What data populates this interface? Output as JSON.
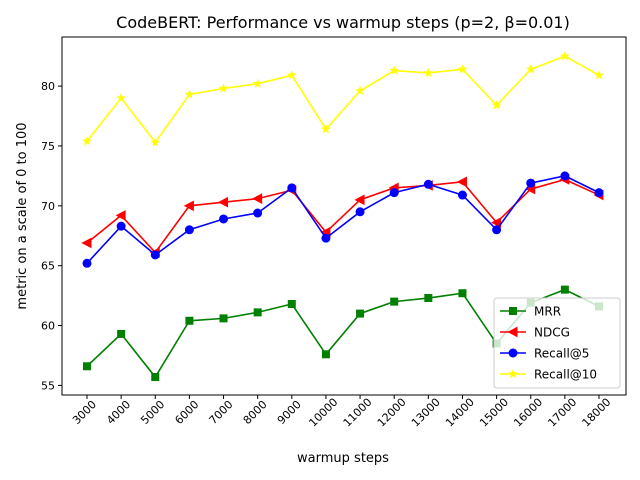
{
  "chart_data": {
    "type": "line",
    "title": "CodeBERT: Performance vs warmup steps (p=2, β=0.01)",
    "xlabel": "warmup steps",
    "ylabel": "metric on a scale of 0 to 100",
    "categories": [
      "3000",
      "4000",
      "5000",
      "6000",
      "7000",
      "8000",
      "9000",
      "10000",
      "11000",
      "12000",
      "13000",
      "14000",
      "15000",
      "16000",
      "17000",
      "18000"
    ],
    "ylim": [
      54.2,
      84.1
    ],
    "yticks": [
      "55",
      "60",
      "65",
      "70",
      "75",
      "80"
    ],
    "grid": false,
    "legend_position": "lower right",
    "series": [
      {
        "name": "MRR",
        "color": "#008000",
        "marker": "square",
        "values": [
          56.6,
          59.3,
          55.7,
          60.4,
          60.6,
          61.1,
          61.8,
          57.6,
          61.0,
          62.0,
          62.3,
          62.7,
          58.5,
          61.9,
          63.0,
          61.6
        ]
      },
      {
        "name": "NDCG",
        "color": "#ff0000",
        "marker": "triangle-left",
        "values": [
          66.9,
          69.2,
          66.1,
          70.0,
          70.3,
          70.6,
          71.3,
          67.8,
          70.5,
          71.5,
          71.7,
          72.0,
          68.6,
          71.4,
          72.2,
          70.9
        ]
      },
      {
        "name": "Recall@5",
        "color": "#0000ff",
        "marker": "circle",
        "values": [
          65.2,
          68.3,
          65.9,
          68.0,
          68.9,
          69.4,
          71.5,
          67.3,
          69.5,
          71.1,
          71.8,
          70.9,
          68.0,
          71.9,
          72.5,
          71.1
        ]
      },
      {
        "name": "Recall@10",
        "color": "#ffff00",
        "marker": "star",
        "values": [
          75.4,
          79.0,
          75.3,
          79.3,
          79.8,
          80.2,
          80.9,
          76.4,
          79.6,
          81.3,
          81.1,
          81.4,
          78.4,
          81.4,
          82.5,
          80.9
        ]
      }
    ]
  }
}
